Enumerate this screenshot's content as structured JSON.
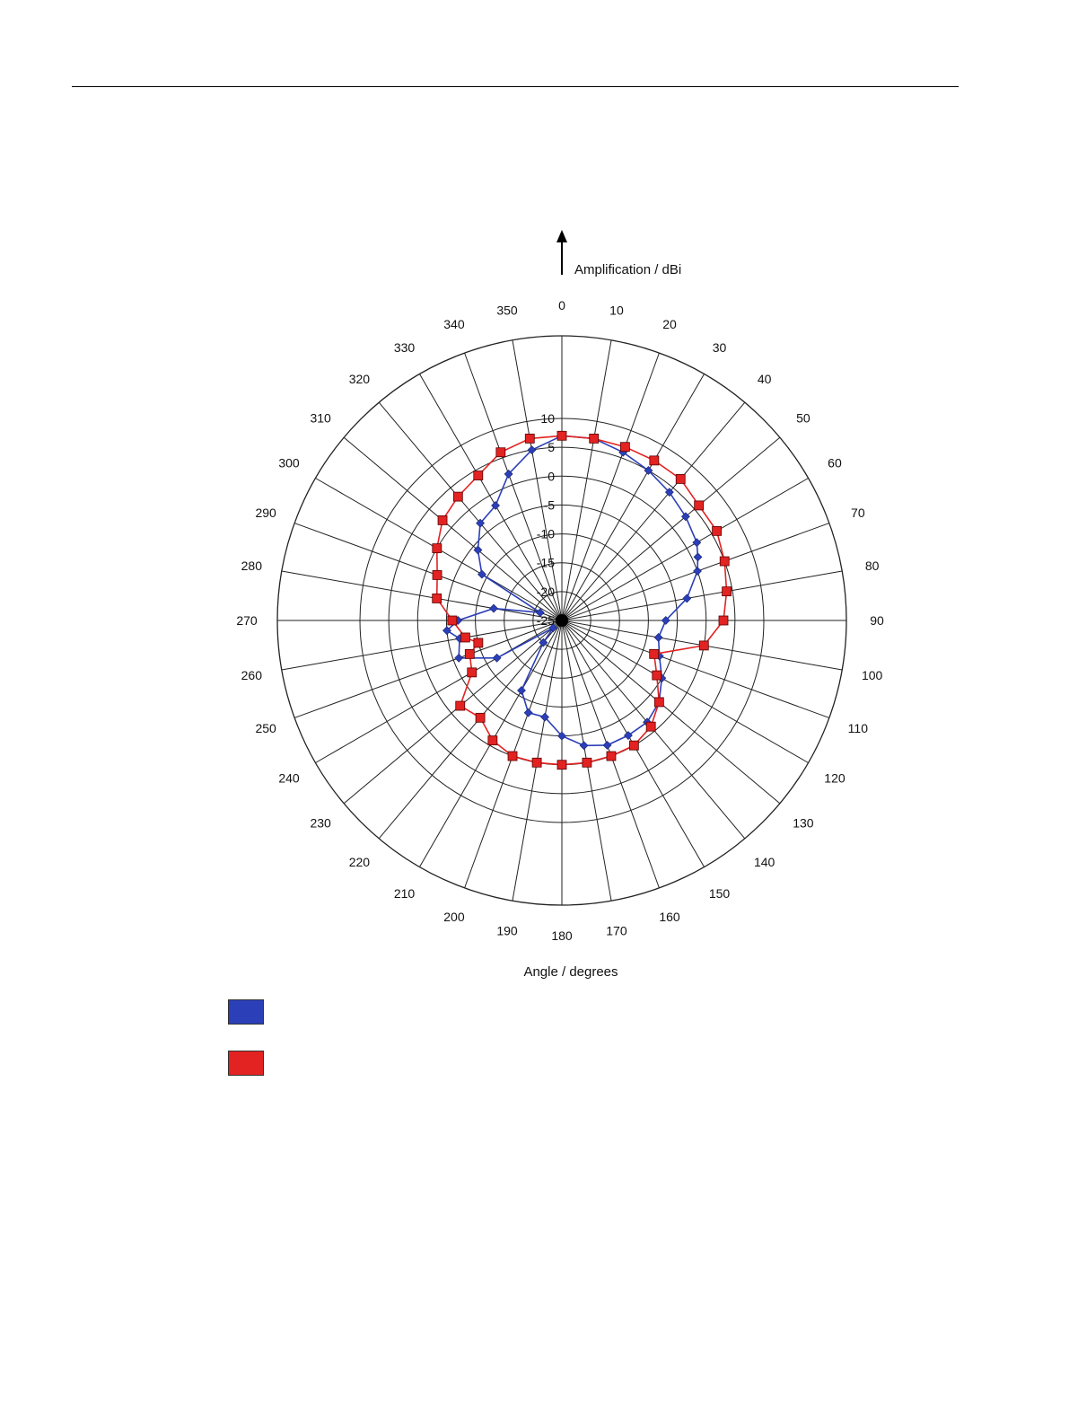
{
  "chart_data": {
    "type": "polar-line",
    "radial_axis_label": "Amplification / dBi",
    "angular_axis_label": "Angle / degrees",
    "radial_range": [
      -25,
      10
    ],
    "radial_ticks": [
      10,
      5,
      0,
      -5,
      -10,
      -15,
      -20,
      -25
    ],
    "angle_ticks": [
      0,
      10,
      20,
      30,
      40,
      50,
      60,
      70,
      80,
      90,
      100,
      110,
      120,
      130,
      140,
      150,
      160,
      170,
      180,
      190,
      200,
      210,
      220,
      230,
      240,
      250,
      260,
      270,
      280,
      290,
      300,
      310,
      320,
      330,
      340,
      350
    ],
    "grid": true,
    "colors": {
      "blue": "#2b3fb8",
      "red": "#e32222"
    },
    "series": [
      {
        "color": "#2b3fb8",
        "marker": "diamond",
        "points": [
          [
            0,
            7
          ],
          [
            10,
            7
          ],
          [
            20,
            6
          ],
          [
            30,
            5
          ],
          [
            40,
            4
          ],
          [
            50,
            3
          ],
          [
            60,
            2
          ],
          [
            65,
            1
          ],
          [
            70,
            0
          ],
          [
            80,
            -3
          ],
          [
            90,
            -7
          ],
          [
            100,
            -8
          ],
          [
            110,
            -7
          ],
          [
            120,
            -5
          ],
          [
            130,
            -3
          ],
          [
            140,
            -2
          ],
          [
            150,
            -2
          ],
          [
            160,
            -2
          ],
          [
            170,
            -3
          ],
          [
            180,
            -5
          ],
          [
            190,
            -8
          ],
          [
            200,
            -8
          ],
          [
            210,
            -11
          ],
          [
            220,
            -20
          ],
          [
            230,
            -23
          ],
          [
            240,
            -12
          ],
          [
            250,
            -6
          ],
          [
            260,
            -7
          ],
          [
            265,
            -5
          ],
          [
            270,
            -7
          ],
          [
            280,
            -13
          ],
          [
            290,
            -21
          ],
          [
            300,
            -9
          ],
          [
            310,
            -6
          ],
          [
            320,
            -3
          ],
          [
            330,
            -2
          ],
          [
            340,
            2
          ],
          [
            350,
            5
          ]
        ]
      },
      {
        "color": "#e32222",
        "marker": "square",
        "points": [
          [
            0,
            7
          ],
          [
            10,
            7
          ],
          [
            20,
            7
          ],
          [
            30,
            7
          ],
          [
            40,
            7
          ],
          [
            50,
            6
          ],
          [
            60,
            6
          ],
          [
            70,
            5
          ],
          [
            80,
            4
          ],
          [
            90,
            3
          ],
          [
            100,
            0
          ],
          [
            110,
            -8
          ],
          [
            120,
            -6
          ],
          [
            130,
            -3
          ],
          [
            140,
            -1
          ],
          [
            150,
            0
          ],
          [
            160,
            0
          ],
          [
            170,
            0
          ],
          [
            180,
            0
          ],
          [
            190,
            0
          ],
          [
            200,
            0
          ],
          [
            210,
            -1
          ],
          [
            220,
            -3
          ],
          [
            230,
            -2
          ],
          [
            240,
            -7
          ],
          [
            250,
            -8
          ],
          [
            255,
            -10
          ],
          [
            260,
            -8
          ],
          [
            270,
            -6
          ],
          [
            280,
            -3
          ],
          [
            290,
            -2
          ],
          [
            300,
            0
          ],
          [
            310,
            2
          ],
          [
            320,
            3
          ],
          [
            330,
            4
          ],
          [
            340,
            6
          ],
          [
            350,
            7
          ]
        ]
      }
    ]
  }
}
